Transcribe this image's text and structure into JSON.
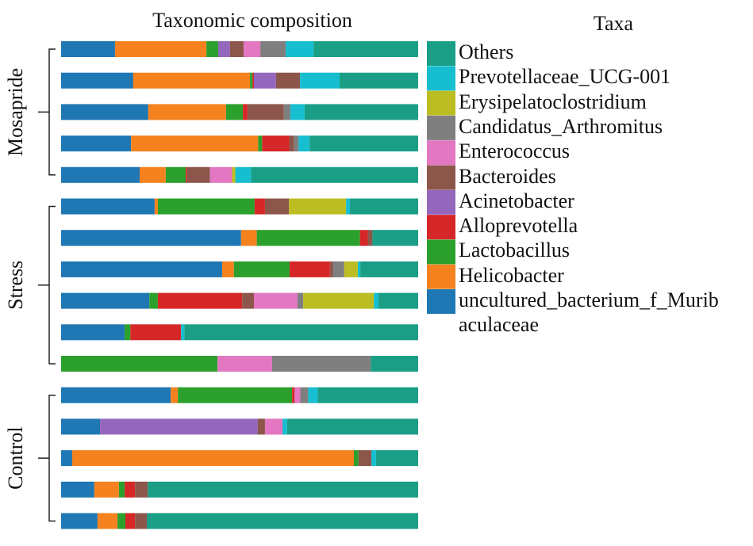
{
  "chart_data": {
    "type": "stacked-bar-horizontal",
    "title": "Taxonomic composition",
    "legend_title": "Taxa",
    "xlim": [
      0,
      100
    ],
    "groups": [
      {
        "name": "Mosapride",
        "categories": [
          null,
          null,
          null,
          null,
          null
        ]
      },
      {
        "name": "Stress",
        "categories": [
          null,
          null,
          null,
          null,
          null,
          null
        ]
      },
      {
        "name": "Control",
        "categories": [
          null,
          null,
          null,
          null,
          null
        ]
      }
    ],
    "series": [
      {
        "name": "uncultured_bacterium_f_Muribaculaceae",
        "color": "#1f77b4",
        "values": [
          15.1,
          20.2,
          24.4,
          19.6,
          22.0,
          26.2,
          50.4,
          45.1,
          24.7,
          17.8,
          0,
          30.7,
          10.9,
          3.1,
          9.3,
          10.2
        ]
      },
      {
        "name": "Helicobacter",
        "color": "#f5821f",
        "values": [
          25.6,
          32.7,
          21.8,
          35.6,
          7.3,
          0.9,
          4.4,
          3.3,
          0,
          0,
          0,
          2.0,
          0,
          78.9,
          6.9,
          5.6
        ]
      },
      {
        "name": "Lactobacillus",
        "color": "#2ca02c",
        "values": [
          3.3,
          0.7,
          4.7,
          1.1,
          5.6,
          27.1,
          28.9,
          15.6,
          2.4,
          1.6,
          43.8,
          32.0,
          0,
          1.3,
          1.6,
          2.2
        ]
      },
      {
        "name": "Alloprevotella",
        "color": "#d62728",
        "values": [
          0,
          0.4,
          1.3,
          7.6,
          0.4,
          2.9,
          2.2,
          11.3,
          23.6,
          14.2,
          0,
          0.7,
          0,
          0,
          2.9,
          2.7
        ]
      },
      {
        "name": "Acinetobacter",
        "color": "#9467bd",
        "values": [
          3.3,
          6.2,
          0,
          0,
          0,
          0,
          0,
          0,
          0,
          0,
          0,
          0,
          44.2,
          0,
          0,
          0
        ]
      },
      {
        "name": "Bacteroides",
        "color": "#8c564b",
        "values": [
          3.8,
          6.7,
          10.2,
          1.3,
          6.4,
          6.7,
          1.3,
          0.9,
          3.3,
          0,
          0,
          0,
          2.0,
          3.6,
          3.6,
          3.3
        ]
      },
      {
        "name": "Enterococcus",
        "color": "#e377c2",
        "values": [
          4.7,
          0,
          0,
          0,
          6.2,
          0,
          0,
          0,
          12.2,
          0,
          15.3,
          1.6,
          4.9,
          0,
          0,
          0
        ]
      },
      {
        "name": "Candidatus_Arthromitus",
        "color": "#7f7f7f",
        "values": [
          7.1,
          0,
          1.8,
          1.3,
          0,
          0,
          0,
          3.1,
          1.6,
          0,
          27.6,
          2.2,
          0,
          0,
          0,
          0
        ]
      },
      {
        "name": "Erysipelatoclostridium",
        "color": "#bcbd22",
        "values": [
          0,
          0,
          0,
          0,
          0.9,
          16.0,
          0,
          3.8,
          19.8,
          0,
          0,
          0,
          0,
          0,
          0,
          0
        ]
      },
      {
        "name": "Prevotellaceae_UCG-001",
        "color": "#17becf",
        "values": [
          7.8,
          11.1,
          4.0,
          3.1,
          4.4,
          1.1,
          0,
          0.7,
          1.3,
          0.9,
          0,
          2.7,
          1.3,
          1.3,
          0,
          0
        ]
      },
      {
        "name": "Others",
        "color": "#1a9e86",
        "values": [
          29.3,
          22.0,
          31.8,
          30.4,
          46.8,
          19.1,
          12.8,
          16.2,
          11.1,
          65.5,
          13.3,
          28.1,
          36.7,
          11.8,
          75.7,
          76.0
        ]
      }
    ]
  }
}
